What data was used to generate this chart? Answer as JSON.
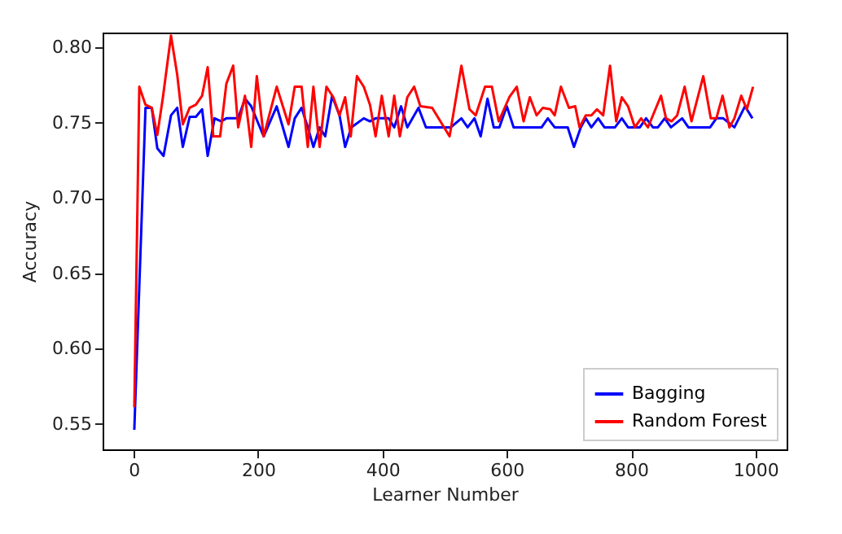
{
  "chart_data": {
    "type": "line",
    "xlabel": "Learner Number",
    "ylabel": "Accuracy",
    "xlim": [
      -50,
      1050
    ],
    "ylim": [
      0.533,
      0.81
    ],
    "xticks": [
      0,
      200,
      400,
      600,
      800,
      1000
    ],
    "yticks": [
      0.55,
      {
        "value": 0.6,
        "label": "0.60"
      },
      0.65,
      {
        "value": 0.7,
        "label": "0.70"
      },
      0.75,
      {
        "value": 0.8,
        "label": "0.80"
      }
    ],
    "legend": "bottom right",
    "grid": false,
    "series": [
      {
        "name": "Bagging",
        "color": "#0000ff",
        "x": [
          1,
          19,
          29,
          38,
          48,
          60,
          70,
          79,
          90,
          100,
          110,
          119,
          130,
          141,
          149,
          168,
          179,
          189,
          209,
          230,
          249,
          259,
          270,
          280,
          289,
          299,
          308,
          319,
          331,
          340,
          350,
          370,
          380,
          389,
          410,
          419,
          430,
          440,
          458,
          470,
          510,
          527,
          537,
          548,
          558,
          569,
          579,
          588,
          600,
          611,
          656,
          666,
          677,
          698,
          708,
          719,
          727,
          736,
          747,
          757,
          774,
          785,
          795,
          814,
          824,
          835,
          843,
          854,
          864,
          882,
          892,
          927,
          937,
          948,
          966,
          983,
          995
        ],
        "values": [
          0.546,
          0.76,
          0.76,
          0.733,
          0.728,
          0.755,
          0.76,
          0.734,
          0.754,
          0.754,
          0.759,
          0.728,
          0.753,
          0.751,
          0.753,
          0.753,
          0.766,
          0.761,
          0.741,
          0.761,
          0.734,
          0.753,
          0.76,
          0.747,
          0.734,
          0.747,
          0.741,
          0.768,
          0.755,
          0.734,
          0.747,
          0.753,
          0.751,
          0.753,
          0.753,
          0.747,
          0.761,
          0.747,
          0.76,
          0.747,
          0.747,
          0.753,
          0.747,
          0.753,
          0.741,
          0.766,
          0.747,
          0.747,
          0.761,
          0.747,
          0.747,
          0.753,
          0.747,
          0.747,
          0.734,
          0.747,
          0.753,
          0.747,
          0.753,
          0.747,
          0.747,
          0.753,
          0.747,
          0.747,
          0.753,
          0.747,
          0.747,
          0.753,
          0.747,
          0.753,
          0.747,
          0.747,
          0.753,
          0.753,
          0.747,
          0.761,
          0.753
        ]
      },
      {
        "name": "Random Forest",
        "color": "#ff0000",
        "x": [
          1,
          9,
          19,
          29,
          38,
          47,
          60,
          70,
          79,
          90,
          100,
          110,
          119,
          128,
          139,
          149,
          160,
          168,
          179,
          189,
          198,
          209,
          230,
          249,
          259,
          270,
          280,
          289,
          299,
          310,
          321,
          331,
          340,
          349,
          359,
          370,
          380,
          389,
          399,
          410,
          419,
          428,
          440,
          451,
          461,
          480,
          508,
          527,
          540,
          550,
          565,
          576,
          587,
          604,
          616,
          627,
          637,
          648,
          658,
          670,
          677,
          687,
          700,
          710,
          717,
          727,
          736,
          745,
          755,
          766,
          776,
          785,
          795,
          806,
          816,
          827,
          839,
          848,
          856,
          865,
          874,
          886,
          897,
          916,
          928,
          937,
          947,
          958,
          966,
          977,
          986,
          996
        ],
        "values": [
          0.561,
          0.774,
          0.762,
          0.76,
          0.742,
          0.767,
          0.808,
          0.782,
          0.749,
          0.76,
          0.762,
          0.768,
          0.787,
          0.741,
          0.741,
          0.776,
          0.788,
          0.747,
          0.768,
          0.734,
          0.781,
          0.741,
          0.774,
          0.749,
          0.774,
          0.774,
          0.734,
          0.774,
          0.734,
          0.774,
          0.767,
          0.755,
          0.767,
          0.741,
          0.781,
          0.774,
          0.762,
          0.741,
          0.768,
          0.741,
          0.768,
          0.741,
          0.767,
          0.774,
          0.761,
          0.76,
          0.741,
          0.788,
          0.759,
          0.755,
          0.774,
          0.774,
          0.751,
          0.767,
          0.774,
          0.751,
          0.767,
          0.755,
          0.76,
          0.759,
          0.755,
          0.774,
          0.76,
          0.761,
          0.747,
          0.755,
          0.755,
          0.759,
          0.755,
          0.788,
          0.751,
          0.767,
          0.761,
          0.747,
          0.753,
          0.747,
          0.759,
          0.768,
          0.753,
          0.751,
          0.755,
          0.774,
          0.751,
          0.781,
          0.753,
          0.753,
          0.768,
          0.747,
          0.753,
          0.768,
          0.759,
          0.774
        ]
      }
    ]
  }
}
